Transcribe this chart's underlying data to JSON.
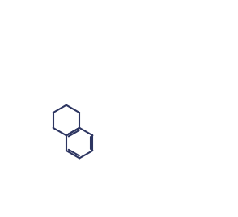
{
  "bg_color": "#ffffff",
  "line_color": "#2d3561",
  "line_width": 1.5,
  "figsize": [
    2.94,
    2.68
  ],
  "dpi": 100
}
